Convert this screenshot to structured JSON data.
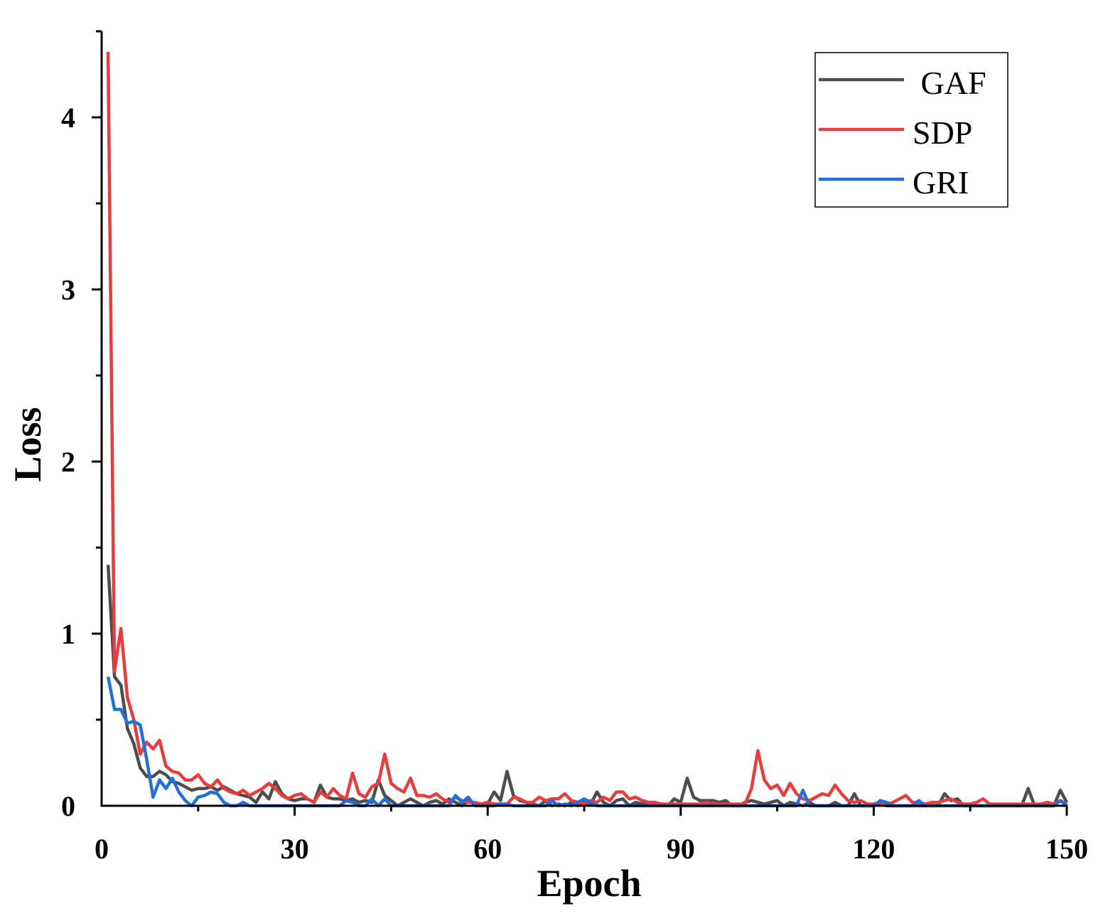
{
  "chart_data": {
    "type": "line",
    "title": "",
    "xlabel": "Epoch",
    "ylabel": "Loss",
    "xlim": [
      0,
      150
    ],
    "ylim": [
      0,
      4.5
    ],
    "xticks": [
      0,
      30,
      60,
      90,
      120,
      150
    ],
    "yticks": [
      0,
      1,
      2,
      3,
      4
    ],
    "grid": false,
    "legend_position": "top-right",
    "series": [
      {
        "name": " GAF",
        "color": "#4d4d4d",
        "x": [
          1,
          2,
          3,
          4,
          5,
          6,
          7,
          8,
          9,
          10,
          11,
          12,
          13,
          14,
          15,
          16,
          17,
          18,
          19,
          20,
          21,
          22,
          23,
          24,
          25,
          26,
          27,
          28,
          29,
          30,
          31,
          32,
          33,
          34,
          35,
          36,
          37,
          38,
          39,
          40,
          41,
          42,
          43,
          44,
          45,
          46,
          47,
          48,
          49,
          50,
          51,
          52,
          53,
          54,
          55,
          56,
          57,
          58,
          59,
          60,
          61,
          62,
          63,
          64,
          65,
          66,
          67,
          68,
          69,
          70,
          71,
          72,
          73,
          74,
          75,
          76,
          77,
          78,
          79,
          80,
          81,
          82,
          83,
          84,
          85,
          86,
          87,
          88,
          89,
          90,
          91,
          92,
          93,
          94,
          95,
          96,
          97,
          98,
          99,
          100,
          101,
          102,
          103,
          104,
          105,
          106,
          107,
          108,
          109,
          110,
          111,
          112,
          113,
          114,
          115,
          116,
          117,
          118,
          119,
          120,
          121,
          122,
          123,
          124,
          125,
          126,
          127,
          128,
          129,
          130,
          131,
          132,
          133,
          134,
          135,
          136,
          137,
          138,
          139,
          140,
          141,
          142,
          143,
          144,
          145,
          146,
          147,
          148,
          149,
          150
        ],
        "y": [
          1.4,
          0.75,
          0.7,
          0.45,
          0.36,
          0.22,
          0.17,
          0.17,
          0.2,
          0.18,
          0.14,
          0.13,
          0.11,
          0.09,
          0.1,
          0.1,
          0.11,
          0.09,
          0.11,
          0.09,
          0.07,
          0.06,
          0.05,
          0.02,
          0.08,
          0.04,
          0.14,
          0.07,
          0.04,
          0.03,
          0.04,
          0.04,
          0.02,
          0.12,
          0.05,
          0.04,
          0.04,
          0.03,
          0.04,
          0.02,
          0.03,
          0.02,
          0.15,
          0.06,
          0.03,
          0.0,
          0.02,
          0.04,
          0.02,
          0.0,
          0.02,
          0.03,
          0.01,
          0.04,
          0.02,
          0.0,
          0.03,
          0.01,
          0.0,
          0.01,
          0.08,
          0.03,
          0.2,
          0.06,
          0.03,
          0.02,
          0.01,
          0.0,
          0.03,
          0.0,
          0.01,
          0.0,
          0.02,
          0.0,
          0.02,
          0.01,
          0.08,
          0.02,
          0.0,
          0.03,
          0.04,
          0.0,
          0.02,
          0.01,
          0.02,
          0.01,
          0.01,
          0.0,
          0.04,
          0.02,
          0.16,
          0.05,
          0.03,
          0.03,
          0.03,
          0.02,
          0.03,
          0.0,
          0.0,
          0.02,
          0.03,
          0.02,
          0.01,
          0.02,
          0.03,
          0.0,
          0.02,
          0.01,
          0.0,
          0.02,
          0.0,
          0.0,
          0.0,
          0.02,
          0.0,
          0.0,
          0.07,
          0.0,
          0.0,
          0.0,
          0.01,
          0.0,
          0.0,
          0.0,
          0.0,
          0.0,
          0.0,
          0.0,
          0.0,
          0.0,
          0.07,
          0.03,
          0.04,
          0.0,
          0.0,
          0.0,
          0.0,
          0.0,
          0.0,
          0.0,
          0.0,
          0.0,
          0.0,
          0.1,
          0.0,
          0.0,
          0.0,
          0.0,
          0.09,
          0.02
        ]
      },
      {
        "name": "SDP",
        "color": "#eb3c3c",
        "x": [
          1,
          2,
          3,
          4,
          5,
          6,
          7,
          8,
          9,
          10,
          11,
          12,
          13,
          14,
          15,
          16,
          17,
          18,
          19,
          20,
          21,
          22,
          23,
          24,
          25,
          26,
          27,
          28,
          29,
          30,
          31,
          32,
          33,
          34,
          35,
          36,
          37,
          38,
          39,
          40,
          41,
          42,
          43,
          44,
          45,
          46,
          47,
          48,
          49,
          50,
          51,
          52,
          53,
          54,
          55,
          56,
          57,
          58,
          59,
          60,
          61,
          62,
          63,
          64,
          65,
          66,
          67,
          68,
          69,
          70,
          71,
          72,
          73,
          74,
          75,
          76,
          77,
          78,
          79,
          80,
          81,
          82,
          83,
          84,
          85,
          86,
          87,
          88,
          89,
          90,
          91,
          92,
          93,
          94,
          95,
          96,
          97,
          98,
          99,
          100,
          101,
          102,
          103,
          104,
          105,
          106,
          107,
          108,
          109,
          110,
          111,
          112,
          113,
          114,
          115,
          116,
          117,
          118,
          119,
          120,
          121,
          122,
          123,
          124,
          125,
          126,
          127,
          128,
          129,
          130,
          131,
          132,
          133,
          134,
          135,
          136,
          137,
          138,
          139,
          140,
          141,
          142,
          143,
          144,
          145,
          146,
          147,
          148,
          149,
          150
        ],
        "y": [
          4.38,
          0.78,
          1.03,
          0.63,
          0.5,
          0.3,
          0.37,
          0.33,
          0.38,
          0.23,
          0.2,
          0.19,
          0.15,
          0.15,
          0.18,
          0.13,
          0.11,
          0.15,
          0.1,
          0.08,
          0.07,
          0.09,
          0.06,
          0.08,
          0.1,
          0.13,
          0.1,
          0.06,
          0.04,
          0.06,
          0.07,
          0.04,
          0.02,
          0.08,
          0.05,
          0.1,
          0.06,
          0.04,
          0.19,
          0.07,
          0.05,
          0.11,
          0.13,
          0.3,
          0.13,
          0.1,
          0.08,
          0.16,
          0.06,
          0.06,
          0.05,
          0.07,
          0.04,
          0.02,
          0.05,
          0.03,
          0.02,
          0.02,
          0.01,
          0.02,
          0.01,
          0.01,
          0.01,
          0.05,
          0.04,
          0.02,
          0.02,
          0.05,
          0.03,
          0.04,
          0.04,
          0.07,
          0.03,
          0.02,
          0.01,
          0.03,
          0.02,
          0.05,
          0.03,
          0.08,
          0.08,
          0.04,
          0.05,
          0.03,
          0.02,
          0.02,
          0.01,
          0.01,
          0.01,
          0.01,
          0.01,
          0.01,
          0.01,
          0.02,
          0.01,
          0.01,
          0.01,
          0.01,
          0.01,
          0.01,
          0.1,
          0.32,
          0.15,
          0.1,
          0.12,
          0.06,
          0.13,
          0.07,
          0.04,
          0.03,
          0.05,
          0.07,
          0.06,
          0.12,
          0.07,
          0.03,
          0.02,
          0.03,
          0.01,
          0.01,
          0.02,
          0.01,
          0.02,
          0.04,
          0.06,
          0.02,
          0.02,
          0.01,
          0.02,
          0.02,
          0.03,
          0.04,
          0.02,
          0.01,
          0.01,
          0.02,
          0.04,
          0.01,
          0.01,
          0.01,
          0.01,
          0.01,
          0.01,
          0.01,
          0.01,
          0.01,
          0.02,
          0.01,
          0.03,
          0.01
        ]
      },
      {
        "name": "GRI",
        "color": "#1f6fde",
        "x": [
          1,
          2,
          3,
          4,
          5,
          6,
          7,
          8,
          9,
          10,
          11,
          12,
          13,
          14,
          15,
          16,
          17,
          18,
          19,
          20,
          21,
          22,
          23,
          24,
          25,
          26,
          27,
          28,
          29,
          30,
          31,
          32,
          33,
          34,
          35,
          36,
          37,
          38,
          39,
          40,
          41,
          42,
          43,
          44,
          45,
          46,
          47,
          48,
          49,
          50,
          51,
          52,
          53,
          54,
          55,
          56,
          57,
          58,
          59,
          60,
          61,
          62,
          63,
          64,
          65,
          66,
          67,
          68,
          69,
          70,
          71,
          72,
          73,
          74,
          75,
          76,
          77,
          78,
          79,
          80,
          81,
          82,
          83,
          84,
          85,
          86,
          87,
          88,
          89,
          90,
          91,
          92,
          93,
          94,
          95,
          96,
          97,
          98,
          99,
          100,
          101,
          102,
          103,
          104,
          105,
          106,
          107,
          108,
          109,
          110,
          111,
          112,
          113,
          114,
          115,
          116,
          117,
          118,
          119,
          120,
          121,
          122,
          123,
          124,
          125,
          126,
          127,
          128,
          129,
          130,
          131,
          132,
          133,
          134,
          135,
          136,
          137,
          138,
          139,
          140,
          141,
          142,
          143,
          144,
          145,
          146,
          147,
          148,
          149,
          150
        ],
        "y": [
          0.75,
          0.56,
          0.56,
          0.48,
          0.49,
          0.47,
          0.27,
          0.05,
          0.15,
          0.1,
          0.16,
          0.08,
          0.03,
          0.0,
          0.05,
          0.06,
          0.08,
          0.07,
          0.02,
          0.0,
          0.0,
          0.02,
          0.0,
          0.0,
          0.0,
          0.0,
          0.0,
          0.0,
          0.0,
          0.0,
          0.0,
          0.0,
          0.0,
          0.0,
          0.0,
          0.0,
          0.0,
          0.03,
          0.02,
          0.0,
          0.0,
          0.04,
          0.0,
          0.04,
          0.0,
          0.0,
          0.0,
          0.0,
          0.0,
          0.0,
          0.0,
          0.0,
          0.0,
          0.0,
          0.06,
          0.02,
          0.05,
          0.0,
          0.0,
          0.0,
          0.0,
          0.01,
          0.01,
          0.0,
          0.0,
          0.0,
          0.0,
          0.0,
          0.0,
          0.03,
          0.0,
          0.01,
          0.0,
          0.02,
          0.04,
          0.02,
          0.0,
          0.0,
          0.0,
          0.0,
          0.0,
          0.0,
          0.0,
          0.0,
          0.0,
          0.0,
          0.0,
          0.0,
          0.0,
          0.0,
          0.0,
          0.0,
          0.0,
          0.0,
          0.0,
          0.0,
          0.0,
          0.0,
          0.0,
          0.0,
          0.0,
          0.0,
          0.0,
          0.0,
          0.0,
          0.0,
          0.0,
          0.0,
          0.09,
          0.0,
          0.0,
          0.0,
          0.0,
          0.0,
          0.0,
          0.0,
          0.0,
          0.0,
          0.0,
          0.0,
          0.03,
          0.02,
          0.0,
          0.0,
          0.0,
          0.0,
          0.03,
          0.0,
          0.0,
          0.0,
          0.0,
          0.0,
          0.0,
          0.0,
          0.0,
          0.0,
          0.0,
          0.0,
          0.0,
          0.0,
          0.0,
          0.0,
          0.0,
          0.0,
          0.0,
          0.0,
          0.0,
          0.0,
          0.03,
          0.0
        ]
      }
    ]
  }
}
